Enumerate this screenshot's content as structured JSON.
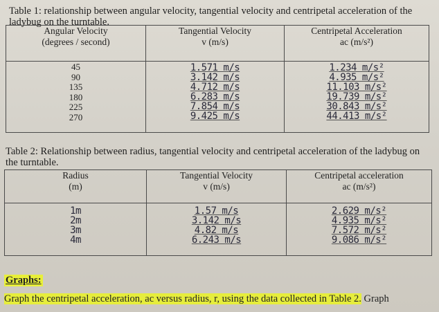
{
  "table1": {
    "caption": "Table 1:  relationship between angular velocity, tangential velocity and centripetal acceleration of the ladybug on the turntable.",
    "headers": [
      {
        "line1": "Angular Velocity",
        "line2": "(degrees / second)"
      },
      {
        "line1": "Tangential Velocity",
        "line2": "v (m/s)"
      },
      {
        "line1": "Centripetal Acceleration",
        "line2": "ac (m/s²)"
      }
    ],
    "angular_velocity": [
      "45",
      "90",
      "135",
      "180",
      "225",
      "270"
    ],
    "tangential_velocity": [
      "1.571 m/s",
      "3.142 m/s",
      "4.712 m/s",
      "6.283 m/s",
      "7.854 m/s",
      "9.425 m/s"
    ],
    "centripetal_acceleration": [
      "1.234 m/s²",
      "4.935 m/s²",
      "11.103 m/s²",
      "19.739 m/s²",
      "30.843 m/s²",
      "44.413 m/s²"
    ]
  },
  "table2": {
    "caption": "Table 2:  Relationship between radius, tangential velocity and centripetal acceleration of the ladybug on the turntable.",
    "headers": [
      {
        "line1": "Radius",
        "line2": "(m)"
      },
      {
        "line1": "Tangential Velocity",
        "line2": "v (m/s)"
      },
      {
        "line1": "Centripetal acceleration",
        "line2": "ac (m/s²)"
      }
    ],
    "radius": [
      "1m",
      "2m",
      "3m",
      "4m"
    ],
    "tangential_velocity": [
      "1.57 m/s",
      "3.142 m/s",
      "4.82 m/s",
      "6.243 m/s"
    ],
    "centripetal_acceleration": [
      "2.629 m/s²",
      "4.935 m/s²",
      "7.572 m/s²",
      "9.086 m/s²"
    ]
  },
  "graphs": {
    "heading": "Graphs:",
    "instruction_highlight": "Graph the centripetal acceleration, ac versus radius, r, using the data collected in Table 2.",
    "instruction_rest": " Graph"
  },
  "colors": {
    "highlight": "#e6ed3c",
    "paper": "#d8d5cd",
    "ink": "#2a2a3a"
  }
}
